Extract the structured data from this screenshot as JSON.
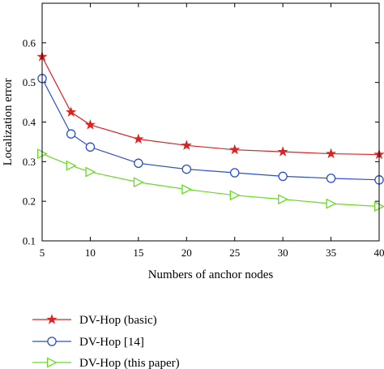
{
  "chart_data": {
    "type": "line",
    "title": "",
    "xlabel": "Numbers of anchor nodes",
    "ylabel": "Localization error",
    "xlim": [
      5,
      40
    ],
    "ylim": [
      0.1,
      0.7
    ],
    "xticks": [
      5,
      10,
      15,
      20,
      25,
      30,
      35,
      40
    ],
    "yticks": [
      0.1,
      0.2,
      0.3,
      0.4,
      0.5,
      0.6
    ],
    "grid": false,
    "legend_position": "below-left",
    "series": [
      {
        "name": "DV-Hop (basic)",
        "color": "#dd2222",
        "marker": "star",
        "x": [
          5,
          8,
          10,
          15,
          20,
          25,
          30,
          35,
          40
        ],
        "y": [
          0.565,
          0.425,
          0.393,
          0.357,
          0.341,
          0.33,
          0.325,
          0.32,
          0.318
        ]
      },
      {
        "name": "DV-Hop [14]",
        "color": "#2a4fd1",
        "marker": "circle",
        "x": [
          5,
          8,
          10,
          15,
          20,
          25,
          30,
          35,
          40
        ],
        "y": [
          0.51,
          0.37,
          0.337,
          0.296,
          0.281,
          0.272,
          0.263,
          0.258,
          0.254
        ]
      },
      {
        "name": "DV-Hop (this paper)",
        "color": "#66dd22",
        "marker": "triangle-right",
        "x": [
          5,
          8,
          10,
          15,
          20,
          25,
          30,
          35,
          40
        ],
        "y": [
          0.32,
          0.29,
          0.274,
          0.248,
          0.23,
          0.215,
          0.205,
          0.194,
          0.187
        ]
      }
    ]
  }
}
